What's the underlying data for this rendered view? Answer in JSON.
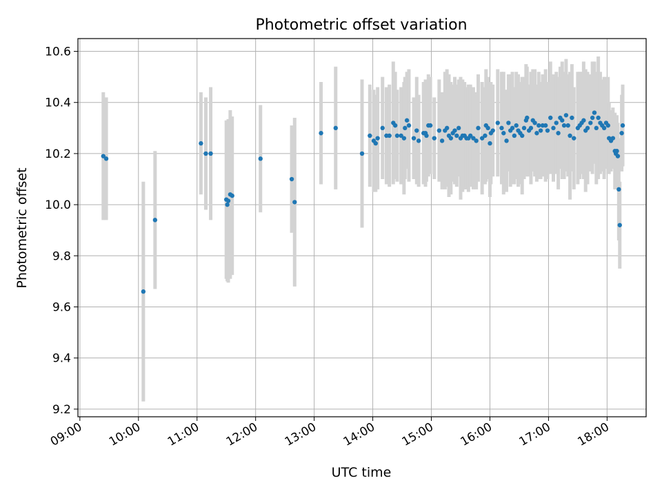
{
  "chart_data": {
    "type": "scatter",
    "title": "Photometric offset variation",
    "xlabel": "UTC time",
    "ylabel": "Photometric offset",
    "x_ticks": [
      "09:00",
      "10:00",
      "11:00",
      "12:00",
      "13:00",
      "14:00",
      "15:00",
      "16:00",
      "17:00",
      "18:00"
    ],
    "y_ticks": [
      "9.2",
      "9.4",
      "9.6",
      "9.8",
      "10.0",
      "10.2",
      "10.4",
      "10.6"
    ],
    "xlim": [
      "08:58",
      "18:40"
    ],
    "ylim": [
      9.17,
      10.65
    ],
    "grid": true,
    "point_color": "#1f77b4",
    "errorbar_color": "#d3d3d3",
    "series": [
      {
        "x": [
          "09:24",
          "09:27",
          "10:05",
          "10:17",
          "11:04",
          "11:09",
          "11:14",
          "11:30",
          "11:31",
          "11:32",
          "11:34",
          "11:36",
          "12:05",
          "12:37",
          "12:40",
          "13:07",
          "13:22",
          "13:49",
          "13:57",
          "14:01",
          "14:03",
          "14:05",
          "14:10",
          "14:14",
          "14:17",
          "14:21",
          "14:23",
          "14:25",
          "14:29",
          "14:32",
          "14:33",
          "14:35",
          "14:37",
          "14:42",
          "14:45",
          "14:47",
          "14:52",
          "14:54",
          "14:55",
          "14:57",
          "14:59",
          "15:03",
          "15:08",
          "15:11",
          "15:14",
          "15:16",
          "15:18",
          "15:20",
          "15:22",
          "15:24",
          "15:26",
          "15:28",
          "15:30",
          "15:32",
          "15:34",
          "15:36",
          "15:38",
          "15:40",
          "15:43",
          "15:46",
          "15:48",
          "15:52",
          "15:55",
          "15:56",
          "15:58",
          "16:00",
          "16:01",
          "16:03",
          "16:08",
          "16:12",
          "16:14",
          "16:17",
          "16:19",
          "16:21",
          "16:23",
          "16:25",
          "16:27",
          "16:29",
          "16:31",
          "16:33",
          "16:35",
          "16:37",
          "16:38",
          "16:40",
          "16:42",
          "16:44",
          "16:46",
          "16:48",
          "16:50",
          "16:52",
          "16:54",
          "16:57",
          "16:59",
          "17:02",
          "17:05",
          "17:08",
          "17:10",
          "17:12",
          "17:14",
          "17:16",
          "17:18",
          "17:20",
          "17:22",
          "17:24",
          "17:26",
          "17:30",
          "17:32",
          "17:34",
          "17:36",
          "17:38",
          "17:40",
          "17:43",
          "17:45",
          "17:47",
          "17:49",
          "17:51",
          "17:53",
          "17:55",
          "17:57",
          "17:59",
          "18:01",
          "18:02",
          "18:04",
          "18:06",
          "18:08",
          "18:09",
          "18:10",
          "18:11",
          "18:12",
          "18:13",
          "18:15",
          "18:16"
        ],
        "y": [
          10.19,
          10.18,
          9.66,
          9.94,
          10.24,
          10.2,
          10.2,
          10.02,
          10.0,
          10.015,
          10.04,
          10.035,
          10.18,
          10.1,
          10.01,
          10.28,
          10.3,
          10.2,
          10.27,
          10.25,
          10.24,
          10.26,
          10.3,
          10.27,
          10.27,
          10.32,
          10.31,
          10.27,
          10.27,
          10.26,
          10.3,
          10.33,
          10.31,
          10.26,
          10.29,
          10.25,
          10.28,
          10.28,
          10.27,
          10.31,
          10.31,
          10.26,
          10.29,
          10.25,
          10.29,
          10.3,
          10.27,
          10.26,
          10.28,
          10.29,
          10.27,
          10.3,
          10.26,
          10.27,
          10.27,
          10.26,
          10.26,
          10.27,
          10.26,
          10.25,
          10.3,
          10.26,
          10.27,
          10.31,
          10.3,
          10.24,
          10.28,
          10.29,
          10.32,
          10.3,
          10.28,
          10.25,
          10.32,
          10.29,
          10.3,
          10.27,
          10.31,
          10.29,
          10.28,
          10.27,
          10.3,
          10.33,
          10.34,
          10.29,
          10.3,
          10.33,
          10.32,
          10.28,
          10.31,
          10.29,
          10.31,
          10.31,
          10.29,
          10.34,
          10.3,
          10.32,
          10.28,
          10.34,
          10.33,
          10.31,
          10.35,
          10.31,
          10.27,
          10.34,
          10.26,
          10.3,
          10.31,
          10.32,
          10.33,
          10.29,
          10.3,
          10.32,
          10.34,
          10.36,
          10.3,
          10.34,
          10.32,
          10.31,
          10.3,
          10.32,
          10.31,
          10.26,
          10.25,
          10.26,
          10.21,
          10.2,
          10.21,
          10.19,
          10.06,
          9.92,
          10.28,
          10.31
        ],
        "err": [
          0.25,
          0.24,
          0.43,
          0.27,
          0.2,
          0.22,
          0.26,
          0.31,
          0.3,
          0.32,
          0.33,
          0.31,
          0.21,
          0.21,
          0.33,
          0.2,
          0.24,
          0.29,
          0.2,
          0.2,
          0.19,
          0.2,
          0.2,
          0.19,
          0.2,
          0.24,
          0.21,
          0.18,
          0.19,
          0.22,
          0.2,
          0.19,
          0.22,
          0.16,
          0.21,
          0.18,
          0.2,
          0.21,
          0.18,
          0.2,
          0.19,
          0.16,
          0.2,
          0.19,
          0.23,
          0.23,
          0.24,
          0.22,
          0.19,
          0.21,
          0.2,
          0.19,
          0.24,
          0.22,
          0.21,
          0.2,
          0.21,
          0.2,
          0.2,
          0.19,
          0.21,
          0.22,
          0.19,
          0.22,
          0.2,
          0.21,
          0.2,
          0.18,
          0.21,
          0.22,
          0.24,
          0.2,
          0.19,
          0.22,
          0.22,
          0.19,
          0.21,
          0.22,
          0.2,
          0.23,
          0.2,
          0.22,
          0.2,
          0.18,
          0.22,
          0.2,
          0.21,
          0.19,
          0.21,
          0.19,
          0.2,
          0.22,
          0.19,
          0.22,
          0.21,
          0.2,
          0.22,
          0.2,
          0.23,
          0.21,
          0.22,
          0.2,
          0.25,
          0.21,
          0.2,
          0.22,
          0.21,
          0.2,
          0.23,
          0.24,
          0.22,
          0.19,
          0.22,
          0.2,
          0.22,
          0.24,
          0.2,
          0.18,
          0.2,
          0.18,
          0.19,
          0.14,
          0.12,
          0.12,
          0.15,
          0.14,
          0.14,
          0.13,
          0.2,
          0.17,
          0.15,
          0.16
        ]
      }
    ]
  }
}
